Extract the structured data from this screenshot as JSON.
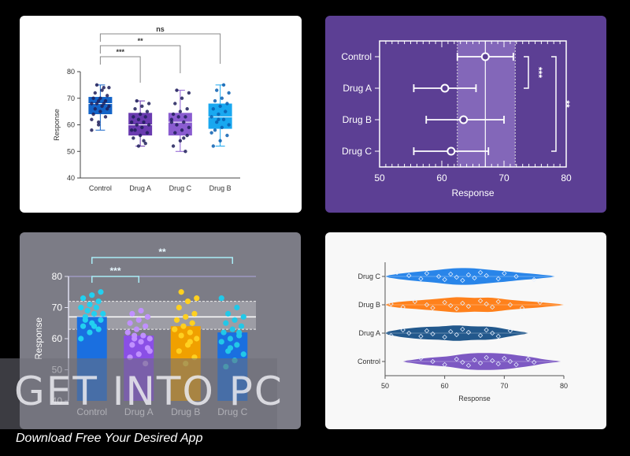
{
  "chart_data": [
    {
      "type": "box",
      "categories": [
        "Control",
        "Drug A",
        "Drug C",
        "Drug B"
      ],
      "ylabel": "Response",
      "ylim": [
        40,
        80
      ],
      "yticks": [
        40,
        50,
        60,
        70,
        80
      ],
      "colors": [
        "#1464c8",
        "#6a3bb0",
        "#8a5cd0",
        "#19a8f0"
      ],
      "boxes": [
        {
          "q1": 64,
          "median": 68,
          "q3": 70.5,
          "min": 58,
          "max": 75
        },
        {
          "q1": 56,
          "median": 60,
          "q3": 64.5,
          "min": 52,
          "max": 69
        },
        {
          "q1": 56,
          "median": 61,
          "q3": 64.5,
          "min": 50,
          "max": 73
        },
        {
          "q1": 58.5,
          "median": 63,
          "q3": 68,
          "min": 52,
          "max": 75
        }
      ],
      "points": [
        [
          58,
          61,
          63,
          64,
          65,
          66,
          66,
          67,
          67,
          68,
          68,
          68,
          69,
          69,
          70,
          70,
          71,
          72,
          73,
          74,
          75,
          74,
          62,
          60
        ],
        [
          52,
          53,
          55,
          56,
          57,
          58,
          59,
          60,
          60,
          61,
          61,
          62,
          63,
          63,
          64,
          65,
          66,
          67,
          68,
          69,
          54,
          58
        ],
        [
          50,
          52,
          54,
          56,
          57,
          58,
          59,
          60,
          61,
          62,
          63,
          63,
          64,
          65,
          66,
          68,
          70,
          72,
          73,
          55,
          61
        ],
        [
          52,
          54,
          56,
          58,
          59,
          60,
          61,
          62,
          63,
          64,
          65,
          66,
          67,
          68,
          69,
          70,
          72,
          73,
          75,
          57,
          62
        ]
      ],
      "significance": [
        {
          "from": "Control",
          "to": "Drug A",
          "label": "***"
        },
        {
          "from": "Control",
          "to": "Drug C",
          "label": "**"
        },
        {
          "from": "Control",
          "to": "Drug B",
          "label": "ns"
        }
      ]
    },
    {
      "type": "errorbar",
      "categories": [
        "Control",
        "Drug A",
        "Drug B",
        "Drug C"
      ],
      "xlabel": "Response",
      "xlim": [
        50,
        80
      ],
      "xticks": [
        50,
        60,
        70,
        80
      ],
      "means": [
        67,
        60.5,
        63.5,
        61.5
      ],
      "lower": [
        62.5,
        55.5,
        57.5,
        55.5
      ],
      "upper": [
        71.5,
        65.5,
        70,
        67.5
      ],
      "band": [
        62.5,
        71.8
      ],
      "refline": 67,
      "significance": [
        {
          "from": "Control",
          "to": "Drug A",
          "label": "***"
        },
        {
          "from": "Control",
          "to": "Drug C",
          "label": "**"
        }
      ]
    },
    {
      "type": "bar",
      "categories": [
        "Control",
        "Drug A",
        "Drug B",
        "Drug C"
      ],
      "values": [
        67,
        61,
        64,
        62
      ],
      "ylabel": "Response",
      "ylim": [
        40,
        80
      ],
      "yticks": [
        40,
        50,
        60,
        70,
        80
      ],
      "bar_colors": [
        "#1a6fe0",
        "#8a4fe6",
        "#f0a000",
        "#1a6fe0"
      ],
      "dot_colors": [
        "#22d0f0",
        "#c090ff",
        "#ffd020",
        "#22c8e8"
      ],
      "points": [
        [
          60,
          62,
          63,
          64,
          65,
          66,
          67,
          68,
          68,
          69,
          70,
          70,
          71,
          72,
          73,
          74,
          75,
          66,
          64
        ],
        [
          52,
          54,
          55,
          57,
          58,
          59,
          60,
          61,
          61,
          62,
          63,
          64,
          65,
          66,
          67,
          68,
          69,
          56,
          60
        ],
        [
          52,
          54,
          56,
          58,
          60,
          61,
          62,
          63,
          64,
          65,
          66,
          67,
          68,
          70,
          72,
          73,
          75,
          59,
          63
        ],
        [
          51,
          53,
          55,
          56,
          58,
          59,
          60,
          61,
          62,
          63,
          64,
          65,
          66,
          67,
          68,
          70,
          73,
          57,
          62
        ]
      ],
      "band": [
        63,
        72
      ],
      "refline": 67,
      "significance": [
        {
          "from": "Control",
          "to": "Drug A",
          "label": "***"
        },
        {
          "from": "Control",
          "to": "Drug C",
          "label": "**"
        }
      ]
    },
    {
      "type": "violin",
      "categories": [
        "Drug C",
        "Drug B",
        "Drug A",
        "Control"
      ],
      "xlabel": "Response",
      "xlim": [
        50,
        80
      ],
      "xticks": [
        50,
        60,
        70,
        80
      ],
      "colors": [
        "#1e7ee8",
        "#ff7a10",
        "#164f86",
        "#7650c0"
      ],
      "ranges": [
        [
          50,
          78.5
        ],
        [
          50,
          80
        ],
        [
          50,
          74
        ],
        [
          53,
          79.5
        ]
      ],
      "points": [
        [
          52,
          54,
          56,
          57,
          59,
          60,
          61,
          62,
          63,
          64,
          65,
          66,
          67,
          69,
          70,
          72,
          75
        ],
        [
          51,
          53,
          55,
          57,
          58,
          60,
          61,
          62,
          63,
          64,
          66,
          67,
          68,
          69,
          71,
          73,
          76
        ],
        [
          51,
          53,
          54,
          56,
          57,
          58,
          60,
          61,
          62,
          63,
          64,
          66,
          67,
          68,
          69,
          71
        ],
        [
          56,
          58,
          60,
          62,
          63,
          64,
          65,
          66,
          67,
          68,
          69,
          70,
          71,
          72,
          74,
          75
        ]
      ]
    }
  ],
  "watermark": {
    "text": "GET INTO PC",
    "tagline": "Download Free Your Desired App"
  }
}
